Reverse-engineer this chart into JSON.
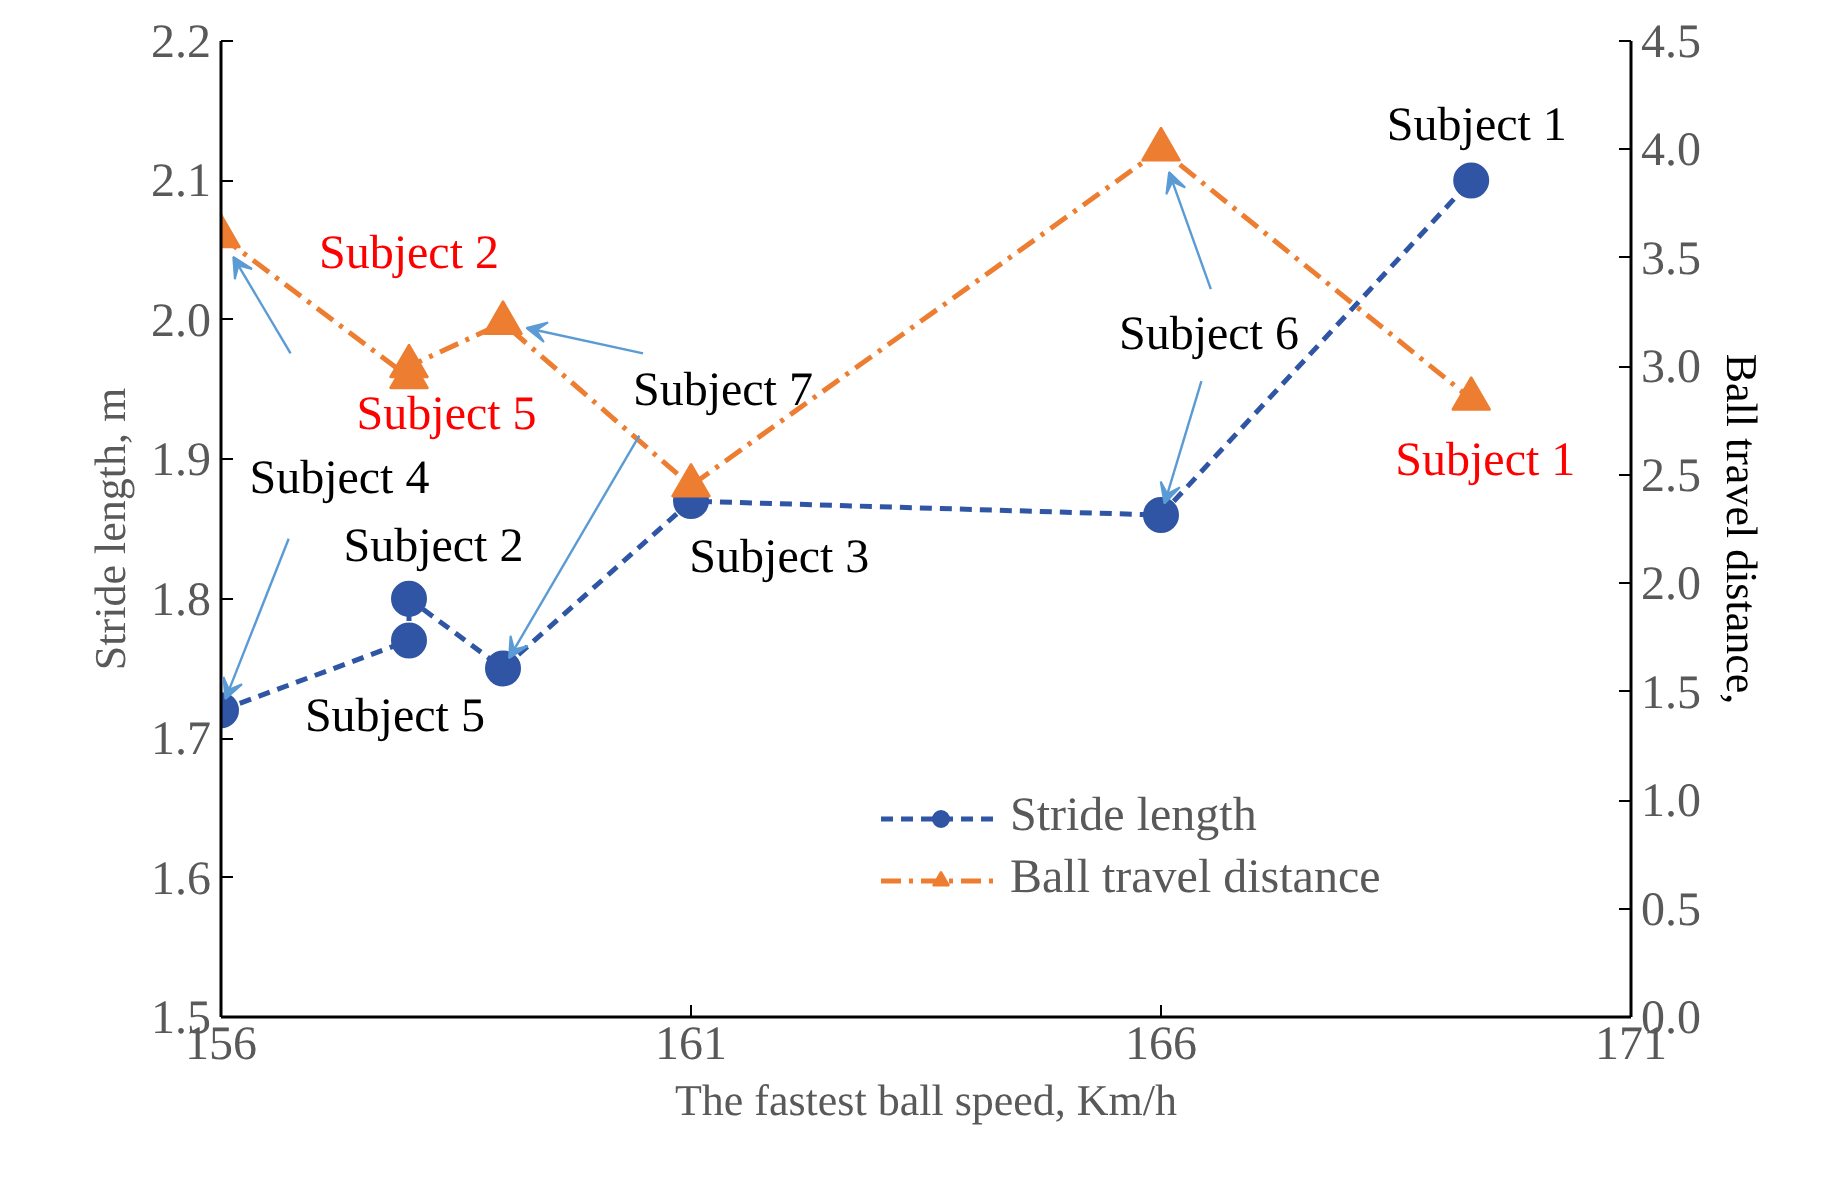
{
  "chart_data": {
    "type": "line",
    "xlabel": "The fastest ball speed, Km/h",
    "ylabel": "Stride length, m",
    "y2label": "Ball travel distance,",
    "x": [
      156,
      158,
      158,
      159,
      161,
      166,
      169.3
    ],
    "series": [
      {
        "name": "Stride length",
        "color": "#2f55a4",
        "marker": "circle",
        "line_style": "dashed",
        "values": [
          1.72,
          1.77,
          1.8,
          1.75,
          1.87,
          1.86,
          2.1
        ]
      },
      {
        "name": "Ball travel distance",
        "color": "#ed7d31",
        "marker": "triangle",
        "line_style": "dashdot",
        "axis": "y2",
        "values": [
          3.6,
          2.95,
          3.0,
          3.2,
          2.45,
          4.0,
          2.85
        ]
      }
    ],
    "xlim": [
      156,
      171
    ],
    "xticks": [
      156,
      161,
      166,
      171
    ],
    "ylim": [
      1.5,
      2.2
    ],
    "yticks": [
      1.5,
      1.6,
      1.7,
      1.8,
      1.9,
      {
        "value": 2.0,
        "label": "2.0"
      },
      2.1,
      2.2
    ],
    "y2lim": [
      0,
      4.5
    ],
    "y2ticks": [
      {
        "value": 0,
        "label": "0.0"
      },
      0.5,
      {
        "value": 1,
        "label": "1.0"
      },
      1.5,
      {
        "value": 2,
        "label": "2.0"
      },
      2.5,
      {
        "value": 3,
        "label": "3.0"
      },
      3.5,
      {
        "value": 4,
        "label": "4.0"
      },
      4.5
    ],
    "annotations": [
      {
        "text": "Subject 4",
        "x": 156,
        "y": 1.72
      },
      {
        "text": "Subject 2",
        "x": 158,
        "y": 1.8
      },
      {
        "text": "Subject 5",
        "x": 158,
        "y": 1.77
      },
      {
        "text": "Subject 7",
        "x": 159,
        "y": 1.75
      },
      {
        "text": "Subject 3",
        "x": 161,
        "y": 1.87
      },
      {
        "text": "Subject 6",
        "x": 166,
        "y": 1.86
      },
      {
        "text": "Subject 1",
        "x": 169.3,
        "y": 2.1
      },
      "Subject 2",
      "Subject 5",
      "Subject 1"
    ],
    "grid": false,
    "legend": "bottom right"
  }
}
